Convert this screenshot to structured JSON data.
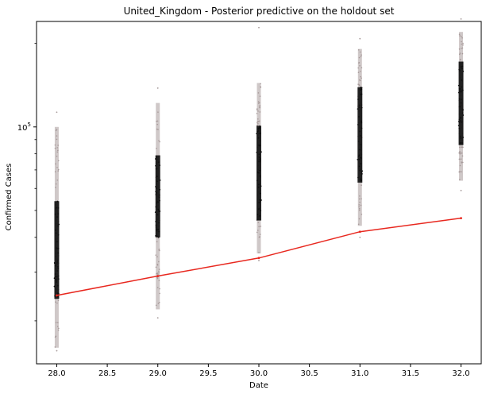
{
  "chart_data": {
    "type": "scatter",
    "title": "United_Kingdom - Posterior predictive on the holdout set",
    "xlabel": "Date",
    "ylabel": "Confirmed Cases",
    "x_scale": "linear",
    "y_scale": "log",
    "xlim": [
      27.8,
      32.2
    ],
    "ylim": [
      14000,
      240000
    ],
    "x_ticks": [
      28.0,
      28.5,
      29.0,
      29.5,
      30.0,
      30.5,
      31.0,
      31.5,
      32.0
    ],
    "x_tick_labels": [
      "28.0",
      "28.5",
      "29.0",
      "29.5",
      "30.0",
      "30.5",
      "31.0",
      "31.5",
      "32.0"
    ],
    "y_major_ticks": [
      100000
    ],
    "y_major_tick_labels": [
      "10^5"
    ],
    "y_minor_ticks": [
      20000,
      30000,
      40000,
      50000,
      60000,
      70000,
      80000,
      90000,
      200000
    ],
    "grid": false,
    "legend": "none",
    "series": [
      {
        "role": "posterior-samples",
        "color_light": "#a79a9a",
        "color_dense": "#111111",
        "distributions": [
          {
            "x": 28.0,
            "outer_low": 16000,
            "dense_low": 24000,
            "dense_high": 54000,
            "outer_high": 100000,
            "extreme_low": 15600,
            "extreme_high": 113000
          },
          {
            "x": 29.0,
            "outer_low": 22000,
            "dense_low": 40000,
            "dense_high": 79000,
            "outer_high": 122000,
            "extreme_low": 20500,
            "extreme_high": 138000
          },
          {
            "x": 30.0,
            "outer_low": 35000,
            "dense_low": 46000,
            "dense_high": 101000,
            "outer_high": 144000,
            "extreme_low": 33000,
            "extreme_high": 228000
          },
          {
            "x": 31.0,
            "outer_low": 44000,
            "dense_low": 63000,
            "dense_high": 139000,
            "outer_high": 191000,
            "extreme_low": 40000,
            "extreme_high": 208000
          },
          {
            "x": 32.0,
            "outer_low": 64000,
            "dense_low": 86000,
            "dense_high": 172000,
            "outer_high": 220000,
            "extreme_low": 59000,
            "extreme_high": 245000
          }
        ]
      },
      {
        "role": "observed",
        "color": "#e8281f",
        "x": [
          28.0,
          29.0,
          30.0,
          31.0,
          32.0
        ],
        "y": [
          24700,
          29000,
          33700,
          41900,
          46900
        ]
      }
    ]
  }
}
